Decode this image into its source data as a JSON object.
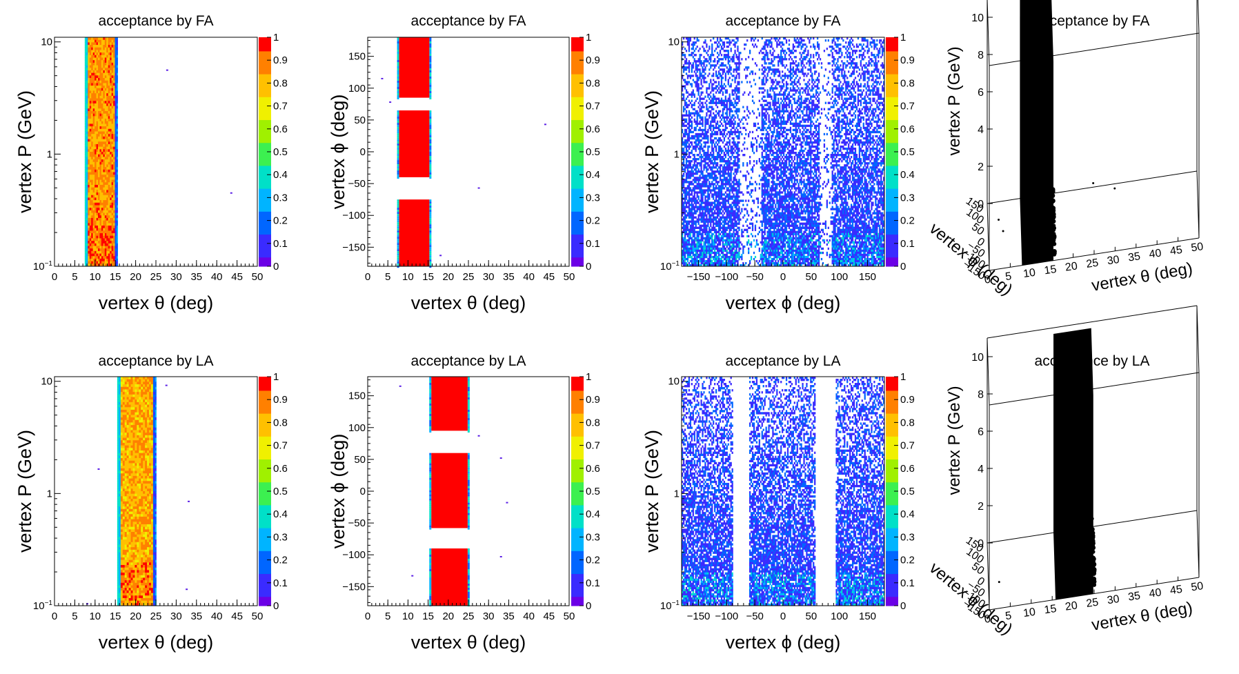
{
  "figure": {
    "panels": [
      {
        "title": "acceptance by FA",
        "type": "heatmap",
        "xlabel": "vertex θ (deg)",
        "ylabel": "vertex P (GeV)",
        "xlim": [
          0,
          50
        ],
        "ylim": [
          0.1,
          11
        ],
        "ylog": true,
        "xticks": [
          "0",
          "5",
          "10",
          "15",
          "20",
          "25",
          "30",
          "35",
          "40",
          "45",
          "50"
        ],
        "yticks": [
          "10",
          "1",
          "10⁻¹"
        ],
        "zlim": [
          0,
          1
        ],
        "zticks": [
          "0",
          "0.1",
          "0.2",
          "0.3",
          "0.4",
          "0.5",
          "0.6",
          "0.7",
          "0.8",
          "0.9",
          "1"
        ],
        "band": {
          "x_from": 7.8,
          "x_to": 15.3,
          "edge_value": 0.3,
          "body_value": 0.85
        },
        "pattern": "theta_p",
        "gaps": [],
        "stray": [
          [
            27.7,
            5.6
          ],
          [
            43.5,
            0.45
          ]
        ]
      },
      {
        "title": "acceptance by FA",
        "type": "heatmap",
        "xlabel": "vertex θ (deg)",
        "ylabel": "vertex ϕ (deg)",
        "xlim": [
          0,
          50
        ],
        "ylim": [
          -180,
          180
        ],
        "ylog": false,
        "xticks": [
          "0",
          "5",
          "10",
          "15",
          "20",
          "25",
          "30",
          "35",
          "40",
          "45",
          "50"
        ],
        "yticks": [
          "−150",
          "−100",
          "−50",
          "0",
          "50",
          "100",
          "150"
        ],
        "zlim": [
          0,
          1
        ],
        "zticks": [
          "0",
          "0.1",
          "0.2",
          "0.3",
          "0.4",
          "0.5",
          "0.6",
          "0.7",
          "0.8",
          "0.9",
          "1"
        ],
        "band": {
          "x_from": 7.8,
          "x_to": 15.3,
          "edge_value": 0.3,
          "body_value": 1.0
        },
        "pattern": "theta_phi",
        "gaps": [
          [
            -75,
            -40
          ],
          [
            65,
            85
          ]
        ],
        "stray": [
          [
            3.5,
            115
          ],
          [
            5.5,
            78
          ],
          [
            44,
            43
          ],
          [
            27.5,
            -57
          ],
          [
            18,
            -163
          ]
        ]
      },
      {
        "title": "acceptance by FA",
        "type": "heatmap",
        "xlabel": "vertex ϕ (deg)",
        "ylabel": "vertex P (GeV)",
        "xlim": [
          -180,
          180
        ],
        "ylim": [
          0.1,
          11
        ],
        "ylog": true,
        "xticks": [
          "−150",
          "−100",
          "−50",
          "0",
          "50",
          "100",
          "150"
        ],
        "yticks": [
          "10",
          "1",
          "10⁻¹"
        ],
        "zlim": [
          0,
          1
        ],
        "zticks": [
          "0",
          "0.1",
          "0.2",
          "0.3",
          "0.4",
          "0.5",
          "0.6",
          "0.7",
          "0.8",
          "0.9",
          "1"
        ],
        "pattern": "phi_p",
        "gaps": [
          [
            -75,
            -40
          ],
          [
            65,
            85
          ]
        ],
        "stray": []
      },
      {
        "title": "acceptance by FA",
        "type": "scatter3d",
        "xlabel": "vertex θ (deg)",
        "ylabel": "vertex ϕ (deg)",
        "zlabel": "vertex P (GeV)",
        "xticks": [
          "0",
          "5",
          "10",
          "15",
          "20",
          "25",
          "30",
          "35",
          "40",
          "45",
          "50"
        ],
        "yticks": [
          "150",
          "100",
          "50",
          "0",
          "−50",
          "−100",
          "−150"
        ],
        "zticks": [
          "0",
          "2",
          "4",
          "6",
          "8",
          "10"
        ],
        "xlim": [
          0,
          50
        ],
        "zlim": [
          0,
          11
        ],
        "band": {
          "x_from": 7.8,
          "x_to": 15.3
        }
      },
      {
        "title": "acceptance by LA",
        "type": "heatmap",
        "xlabel": "vertex θ (deg)",
        "ylabel": "vertex P (GeV)",
        "xlim": [
          0,
          50
        ],
        "ylim": [
          0.1,
          11
        ],
        "ylog": true,
        "xticks": [
          "0",
          "5",
          "10",
          "15",
          "20",
          "25",
          "30",
          "35",
          "40",
          "45",
          "50"
        ],
        "yticks": [
          "10",
          "1",
          "10⁻¹"
        ],
        "zlim": [
          0,
          1
        ],
        "zticks": [
          "0",
          "0.1",
          "0.2",
          "0.3",
          "0.4",
          "0.5",
          "0.6",
          "0.7",
          "0.8",
          "0.9",
          "1"
        ],
        "band": {
          "x_from": 15.8,
          "x_to": 24.8,
          "edge_value": 0.3,
          "body_value": 0.82
        },
        "pattern": "theta_p",
        "gaps": [],
        "stray": [
          [
            27.5,
            9.2
          ],
          [
            10.8,
            1.65
          ],
          [
            33,
            0.85
          ],
          [
            32.5,
            0.14
          ],
          [
            8,
            0.104
          ]
        ]
      },
      {
        "title": "acceptance by LA",
        "type": "heatmap",
        "xlabel": "vertex θ (deg)",
        "ylabel": "vertex ϕ (deg)",
        "xlim": [
          0,
          50
        ],
        "ylim": [
          -180,
          180
        ],
        "ylog": false,
        "xticks": [
          "0",
          "5",
          "10",
          "15",
          "20",
          "25",
          "30",
          "35",
          "40",
          "45",
          "50"
        ],
        "yticks": [
          "−150",
          "−100",
          "−50",
          "0",
          "50",
          "100",
          "150"
        ],
        "zlim": [
          0,
          1
        ],
        "zticks": [
          "0",
          "0.1",
          "0.2",
          "0.3",
          "0.4",
          "0.5",
          "0.6",
          "0.7",
          "0.8",
          "0.9",
          "1"
        ],
        "band": {
          "x_from": 15.8,
          "x_to": 24.8,
          "edge_value": 0.3,
          "body_value": 1.0
        },
        "pattern": "theta_phi",
        "gaps": [
          [
            -90,
            -58
          ],
          [
            60,
            95
          ]
        ],
        "stray": [
          [
            8,
            165
          ],
          [
            27.5,
            87
          ],
          [
            33,
            52
          ],
          [
            34.5,
            -18
          ],
          [
            33,
            -103
          ],
          [
            11,
            -133
          ]
        ]
      },
      {
        "title": "acceptance by LA",
        "type": "heatmap",
        "xlabel": "vertex ϕ (deg)",
        "ylabel": "vertex P (GeV)",
        "xlim": [
          -180,
          180
        ],
        "ylim": [
          0.1,
          11
        ],
        "ylog": true,
        "xticks": [
          "−150",
          "−100",
          "−50",
          "0",
          "50",
          "100",
          "150"
        ],
        "yticks": [
          "10",
          "1",
          "10⁻¹"
        ],
        "zlim": [
          0,
          1
        ],
        "zticks": [
          "0",
          "0.1",
          "0.2",
          "0.3",
          "0.4",
          "0.5",
          "0.6",
          "0.7",
          "0.8",
          "0.9",
          "1"
        ],
        "pattern": "phi_p",
        "gaps": [
          [
            -88,
            -62
          ],
          [
            58,
            93
          ]
        ],
        "stray": []
      },
      {
        "title": "acceptance by LA",
        "type": "scatter3d",
        "xlabel": "vertex θ (deg)",
        "ylabel": "vertex ϕ (deg)",
        "zlabel": "vertex P (GeV)",
        "xticks": [
          "0",
          "5",
          "10",
          "15",
          "20",
          "25",
          "30",
          "35",
          "40",
          "45",
          "50"
        ],
        "yticks": [
          "150",
          "100",
          "50",
          "0",
          "−50",
          "−100",
          "−150"
        ],
        "zticks": [
          "0",
          "2",
          "4",
          "6",
          "8",
          "10"
        ],
        "xlim": [
          0,
          50
        ],
        "zlim": [
          0,
          11
        ],
        "band": {
          "x_from": 15.8,
          "x_to": 24.8
        }
      }
    ]
  },
  "colors": {
    "palette": [
      "#6b00e6",
      "#3a2bff",
      "#0066ff",
      "#00b4ff",
      "#00e0c8",
      "#3cf050",
      "#a0f000",
      "#f0f000",
      "#ffc000",
      "#ff8000",
      "#ff0000"
    ]
  },
  "chart_data": [
    {
      "type": "heatmap",
      "title": "acceptance by FA",
      "xlabel": "vertex θ (deg)",
      "ylabel": "vertex P (GeV)",
      "xlim": [
        0,
        50
      ],
      "ylim": [
        0.1,
        11
      ],
      "ylog": true,
      "zlim": [
        0,
        1
      ]
    },
    {
      "type": "heatmap",
      "title": "acceptance by FA",
      "xlabel": "vertex θ (deg)",
      "ylabel": "vertex ϕ (deg)",
      "xlim": [
        0,
        50
      ],
      "ylim": [
        -180,
        180
      ],
      "zlim": [
        0,
        1
      ]
    },
    {
      "type": "heatmap",
      "title": "acceptance by FA",
      "xlabel": "vertex ϕ (deg)",
      "ylabel": "vertex P (GeV)",
      "xlim": [
        -180,
        180
      ],
      "ylim": [
        0.1,
        11
      ],
      "ylog": true,
      "zlim": [
        0,
        1
      ]
    },
    {
      "type": "scatter",
      "title": "acceptance by FA",
      "xlabel": "vertex θ (deg)",
      "ylabel": "vertex ϕ (deg)",
      "zlabel": "vertex P (GeV)",
      "xlim": [
        0,
        50
      ],
      "zlim": [
        0,
        11
      ]
    },
    {
      "type": "heatmap",
      "title": "acceptance by LA",
      "xlabel": "vertex θ (deg)",
      "ylabel": "vertex P (GeV)",
      "xlim": [
        0,
        50
      ],
      "ylim": [
        0.1,
        11
      ],
      "ylog": true,
      "zlim": [
        0,
        1
      ]
    },
    {
      "type": "heatmap",
      "title": "acceptance by LA",
      "xlabel": "vertex θ (deg)",
      "ylabel": "vertex ϕ (deg)",
      "xlim": [
        0,
        50
      ],
      "ylim": [
        -180,
        180
      ],
      "zlim": [
        0,
        1
      ]
    },
    {
      "type": "heatmap",
      "title": "acceptance by LA",
      "xlabel": "vertex ϕ (deg)",
      "ylabel": "vertex P (GeV)",
      "xlim": [
        -180,
        180
      ],
      "ylim": [
        0.1,
        11
      ],
      "ylog": true,
      "zlim": [
        0,
        1
      ]
    },
    {
      "type": "scatter",
      "title": "acceptance by LA",
      "xlabel": "vertex θ (deg)",
      "ylabel": "vertex ϕ (deg)",
      "zlabel": "vertex P (GeV)",
      "xlim": [
        0,
        50
      ],
      "zlim": [
        0,
        11
      ]
    }
  ]
}
